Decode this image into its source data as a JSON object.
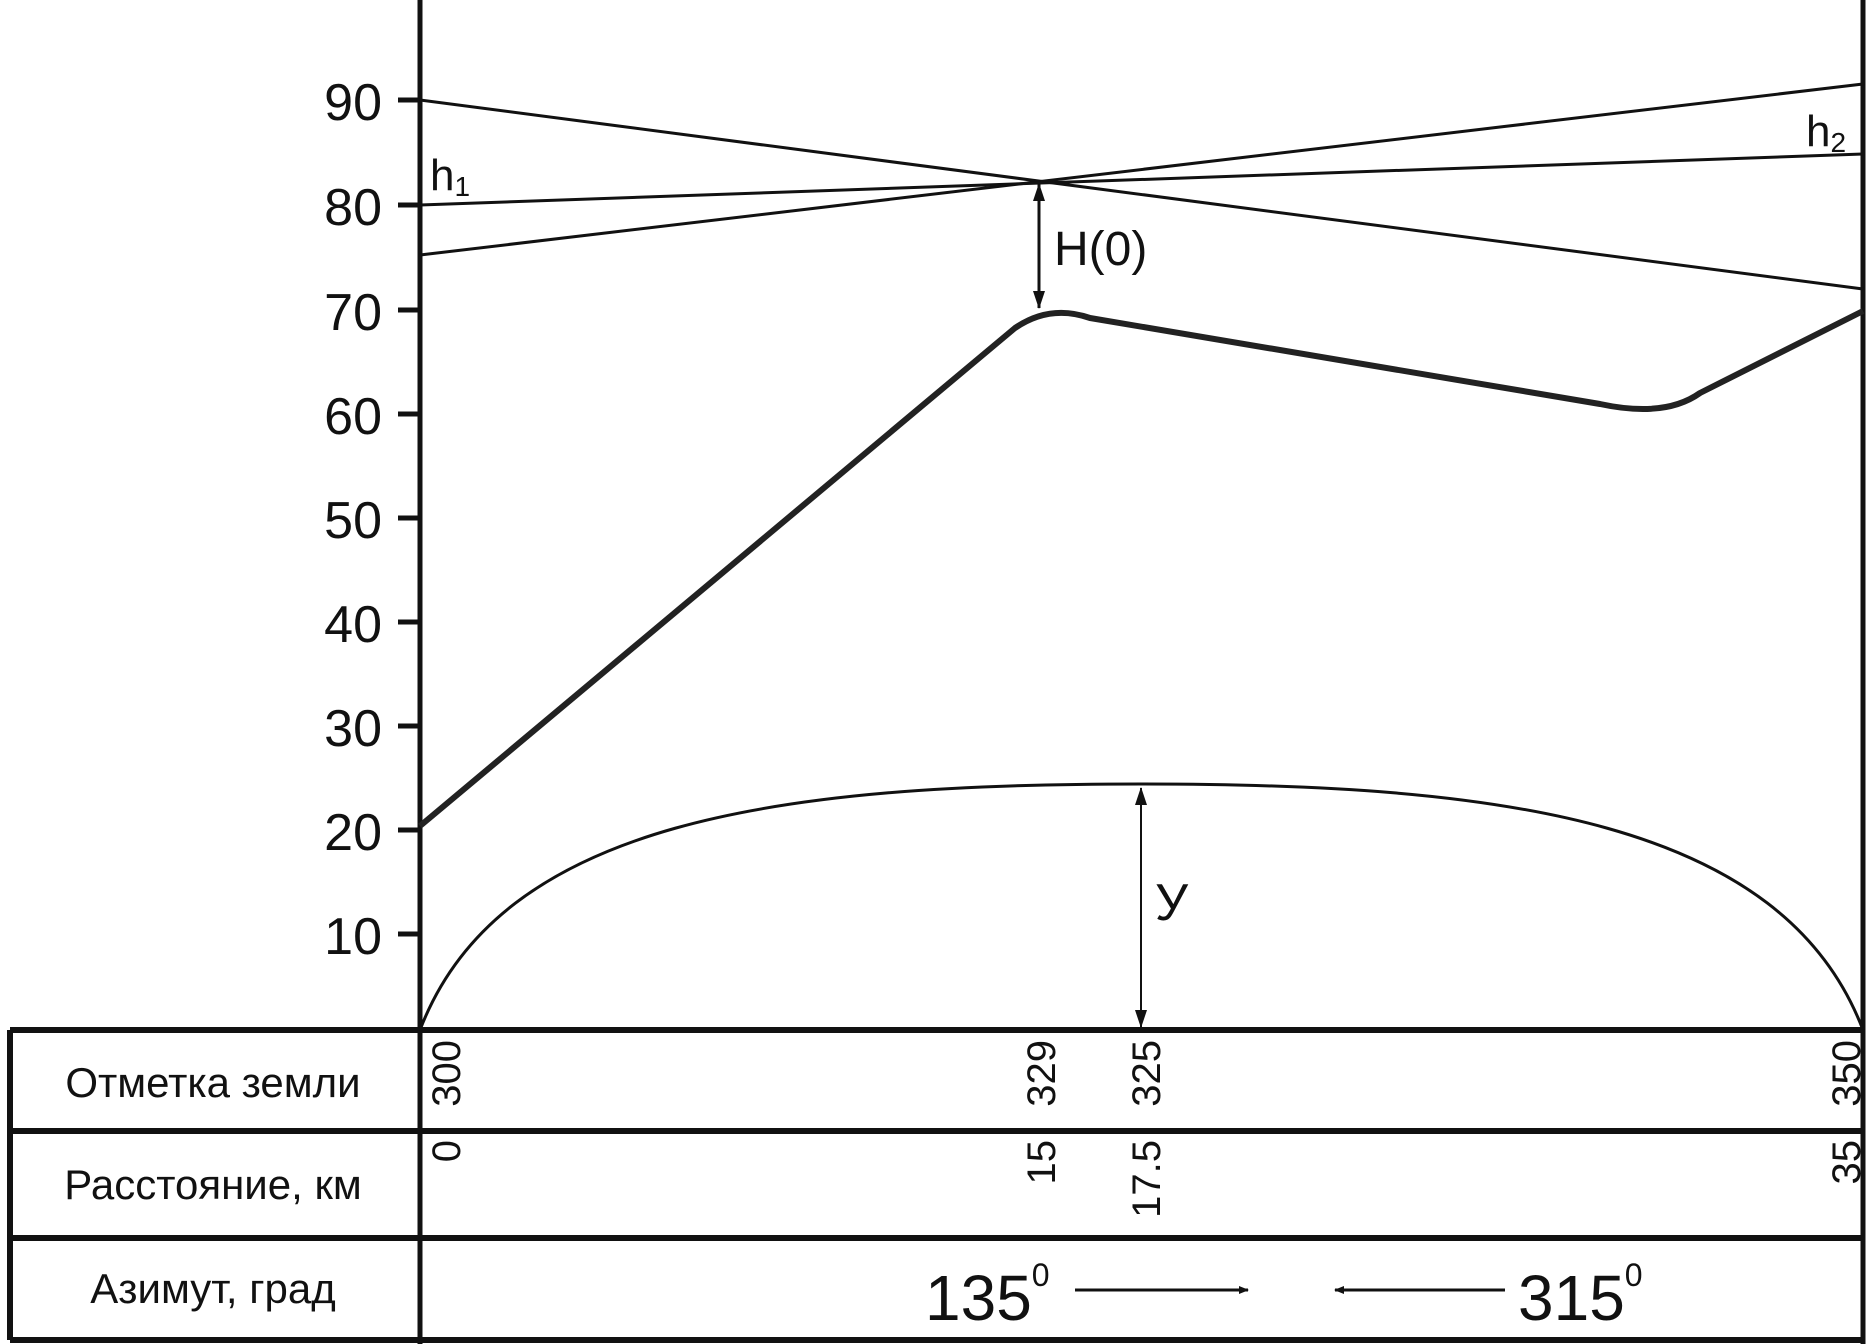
{
  "y_axis": {
    "ticks": [
      "90",
      "80",
      "70",
      "60",
      "50",
      "40",
      "30",
      "20",
      "10"
    ]
  },
  "annotations": {
    "h1": "h",
    "h1_sub": "1",
    "h2": "h",
    "h2_sub": "2",
    "clearance": "H(0)",
    "bulge": "У"
  },
  "table": {
    "rows": [
      {
        "label": "Отметка земли",
        "values": [
          "300",
          "329",
          "325",
          "350"
        ]
      },
      {
        "label": "Расстояние, км",
        "values": [
          "0",
          "15",
          "17.5",
          "35"
        ]
      },
      {
        "label": "Азимут, град",
        "azimuth_left": "135",
        "azimuth_right": "315",
        "degree_mark": "0"
      }
    ]
  },
  "profile": {
    "distance_km": [
      0,
      15,
      17.5,
      35
    ],
    "terrain_height_m": [
      20,
      70,
      70,
      70
    ],
    "earth_bulge_peak_m": 23.5
  }
}
